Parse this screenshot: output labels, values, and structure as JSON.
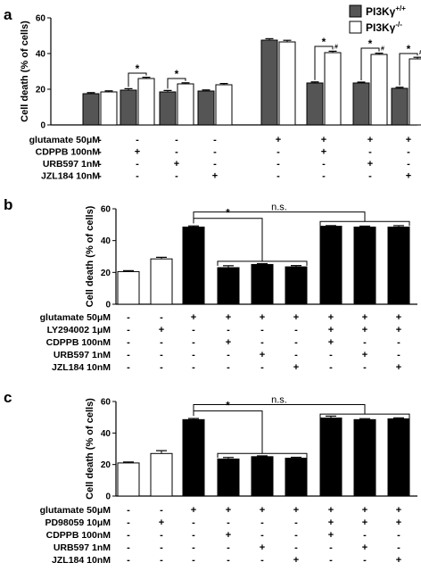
{
  "chart_data": [
    {
      "panel": "a",
      "type": "bar",
      "ylabel": "Cell death (% of cells)",
      "ylim": [
        0,
        60
      ],
      "yticks": [
        0,
        20,
        40,
        60
      ],
      "legend": {
        "placement": "top-right",
        "entries": [
          {
            "base": "PI3Kγ",
            "sup": "+/+",
            "color": "#555555"
          },
          {
            "base": "PI3Kγ",
            "sup": "-/-",
            "color": "#ffffff"
          }
        ]
      },
      "series": [
        {
          "key": "wt",
          "color": "#555555",
          "values": [
            17.5,
            19.5,
            18.5,
            19,
            47.5,
            23.5,
            23.5,
            20.5
          ],
          "errors": [
            0.6,
            0.8,
            0.8,
            0.6,
            0.8,
            0.6,
            0.5,
            0.6
          ]
        },
        {
          "key": "ko",
          "color": "#ffffff",
          "values": [
            18.5,
            26,
            23,
            22.5,
            46.5,
            40.5,
            39.5,
            37
          ],
          "errors": [
            0.6,
            0.7,
            0.6,
            0.7,
            0.9,
            0.8,
            0.7,
            0.9
          ]
        }
      ],
      "conditions": [
        {
          "label": "glutamate 50μM",
          "signs": [
            "-",
            "-",
            "-",
            "-",
            "+",
            "+",
            "+",
            "+"
          ]
        },
        {
          "label": "CDPPB 100nM",
          "signs": [
            "-",
            "+",
            "-",
            "-",
            "-",
            "+",
            "-",
            "-"
          ]
        },
        {
          "label": "URB597 1nM",
          "signs": [
            "-",
            "-",
            "+",
            "-",
            "-",
            "-",
            "+",
            "-"
          ]
        },
        {
          "label": "JZL184 10nM",
          "signs": [
            "-",
            "-",
            "-",
            "+",
            "-",
            "-",
            "-",
            "+"
          ]
        }
      ],
      "annotations": [
        {
          "group": 1,
          "text": "*",
          "y": 29
        },
        {
          "group": 2,
          "text": "*",
          "y": 26
        },
        {
          "group": 5,
          "text": "*",
          "mark": "#",
          "y": 44
        },
        {
          "group": 6,
          "text": "*",
          "mark": "#",
          "y": 43
        },
        {
          "group": 7,
          "text": "*",
          "mark": "#",
          "y": 40
        }
      ]
    },
    {
      "panel": "b",
      "type": "bar",
      "ylabel": "Cell death (% of cells)",
      "ylim": [
        0,
        60
      ],
      "yticks": [
        0,
        20,
        40,
        60
      ],
      "values": [
        20.5,
        28.5,
        48.5,
        23,
        25,
        23.5,
        49,
        48.5,
        48.5
      ],
      "errors": [
        0.6,
        1.0,
        0.7,
        1.2,
        0.5,
        0.8,
        0.4,
        0.6,
        0.9
      ],
      "colors": [
        "#ffffff",
        "#ffffff",
        "#000000",
        "#000000",
        "#000000",
        "#000000",
        "#000000",
        "#000000",
        "#000000"
      ],
      "conditions": [
        {
          "label": "glutamate 50μM",
          "signs": [
            "-",
            "-",
            "+",
            "+",
            "+",
            "+",
            "+",
            "+",
            "+"
          ]
        },
        {
          "label": "LY294002 1μM",
          "signs": [
            "-",
            "+",
            "-",
            "-",
            "-",
            "-",
            "+",
            "+",
            "+"
          ]
        },
        {
          "label": "CDPPB 100nM",
          "signs": [
            "-",
            "-",
            "-",
            "+",
            "-",
            "-",
            "+",
            "-",
            "-"
          ]
        },
        {
          "label": "URB597 1nM",
          "signs": [
            "-",
            "-",
            "-",
            "-",
            "+",
            "-",
            "-",
            "+",
            "-"
          ]
        },
        {
          "label": "JZL184 10nM",
          "signs": [
            "-",
            "-",
            "-",
            "-",
            "-",
            "+",
            "-",
            "-",
            "+"
          ]
        }
      ],
      "brackets": [
        {
          "text": "*",
          "from": 2,
          "group_from": 3,
          "group_to": 5,
          "y": 54,
          "group_y": 27
        },
        {
          "text": "n.s.",
          "from": 2,
          "group_from": 6,
          "group_to": 8,
          "y": 58,
          "group_y": 52
        }
      ]
    },
    {
      "panel": "c",
      "type": "bar",
      "ylabel": "Cell death (% of cells)",
      "ylim": [
        0,
        60
      ],
      "yticks": [
        0,
        20,
        40,
        60
      ],
      "values": [
        21,
        27,
        48.5,
        23.5,
        25,
        24,
        49.5,
        48.5,
        49
      ],
      "errors": [
        0.6,
        1.8,
        0.7,
        1.0,
        0.5,
        0.6,
        1.2,
        0.6,
        0.6
      ],
      "colors": [
        "#ffffff",
        "#ffffff",
        "#000000",
        "#000000",
        "#000000",
        "#000000",
        "#000000",
        "#000000",
        "#000000"
      ],
      "conditions": [
        {
          "label": "glutamate 50μM",
          "signs": [
            "-",
            "-",
            "+",
            "+",
            "+",
            "+",
            "+",
            "+",
            "+"
          ]
        },
        {
          "label": "PD98059 10μM",
          "signs": [
            "-",
            "+",
            "-",
            "-",
            "-",
            "-",
            "+",
            "+",
            "+"
          ]
        },
        {
          "label": "CDPPB 100nM",
          "signs": [
            "-",
            "-",
            "-",
            "+",
            "-",
            "-",
            "+",
            "-",
            "-"
          ]
        },
        {
          "label": "URB597 1nM",
          "signs": [
            "-",
            "-",
            "-",
            "-",
            "+",
            "-",
            "-",
            "+",
            "-"
          ]
        },
        {
          "label": "JZL184 10nM",
          "signs": [
            "-",
            "-",
            "-",
            "-",
            "-",
            "+",
            "-",
            "-",
            "+"
          ]
        }
      ],
      "brackets": [
        {
          "text": "*",
          "from": 2,
          "group_from": 3,
          "group_to": 5,
          "y": 54,
          "group_y": 27
        },
        {
          "text": "n.s.",
          "from": 2,
          "group_from": 6,
          "group_to": 8,
          "y": 58,
          "group_y": 52
        }
      ]
    }
  ]
}
